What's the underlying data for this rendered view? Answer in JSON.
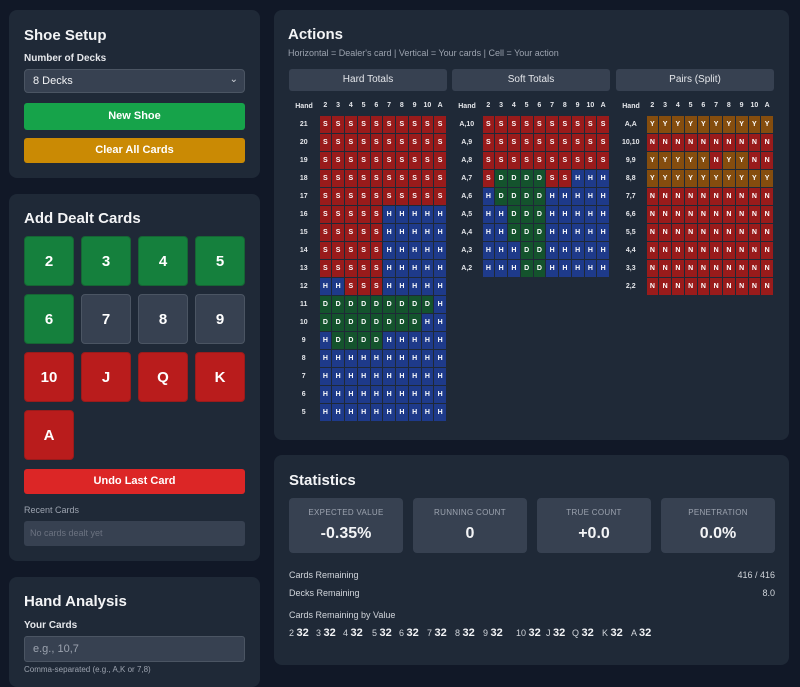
{
  "shoe": {
    "title": "Shoe Setup",
    "decks_label": "Number of Decks",
    "decks_value": "8 Decks",
    "new_shoe": "New Shoe",
    "clear": "Clear All Cards"
  },
  "add": {
    "title": "Add Dealt Cards",
    "cards": [
      "2",
      "3",
      "4",
      "5",
      "6",
      "7",
      "8",
      "9",
      "10",
      "J",
      "Q",
      "K",
      "A"
    ],
    "undo": "Undo Last Card",
    "recent_label": "Recent Cards",
    "recent_placeholder": "No cards dealt yet"
  },
  "hand": {
    "title": "Hand Analysis",
    "cards_label": "Your Cards",
    "cards_placeholder": "e.g., 10,7",
    "hint": "Comma-separated (e.g., A,K or 7,8)"
  },
  "actions": {
    "title": "Actions",
    "subtitle": "Horizontal = Dealer's card | Vertical = Your cards | Cell = Your action",
    "dealer": [
      "2",
      "3",
      "4",
      "5",
      "6",
      "7",
      "8",
      "9",
      "10",
      "A"
    ],
    "hard": {
      "title": "Hard Totals",
      "header": "Hand",
      "rows": [
        [
          "21",
          "SSSSSSSSSS"
        ],
        [
          "20",
          "SSSSSSSSSS"
        ],
        [
          "19",
          "SSSSSSSSSS"
        ],
        [
          "18",
          "SSSSSSSSSS"
        ],
        [
          "17",
          "SSSSSSSSSS"
        ],
        [
          "16",
          "SSSSSHHHHH"
        ],
        [
          "15",
          "SSSSSHHHHH"
        ],
        [
          "14",
          "SSSSSHHHHH"
        ],
        [
          "13",
          "SSSSSHHHHH"
        ],
        [
          "12",
          "HHSSSHHHHH"
        ],
        [
          "11",
          "DDDDDDDDDH"
        ],
        [
          "10",
          "DDDDDDDDHH"
        ],
        [
          "9",
          "HDDDDHHHHH"
        ],
        [
          "8",
          "HHHHHHHHHH"
        ],
        [
          "7",
          "HHHHHHHHHH"
        ],
        [
          "6",
          "HHHHHHHHHH"
        ],
        [
          "5",
          "HHHHHHHHHH"
        ]
      ]
    },
    "soft": {
      "title": "Soft Totals",
      "header": "Hand",
      "rows": [
        [
          "A,10",
          "SSSSSSSSSS"
        ],
        [
          "A,9",
          "SSSSSSSSSS"
        ],
        [
          "A,8",
          "SSSSSSSSSS"
        ],
        [
          "A,7",
          "SDDDDSSHHH"
        ],
        [
          "A,6",
          "HDDDDHHHHH"
        ],
        [
          "A,5",
          "HHDDDHHHHH"
        ],
        [
          "A,4",
          "HHDDDHHHHH"
        ],
        [
          "A,3",
          "HHHDDHHHHH"
        ],
        [
          "A,2",
          "HHHDDHHHHH"
        ]
      ]
    },
    "pairs": {
      "title": "Pairs (Split)",
      "header": "Hand",
      "rows": [
        [
          "A,A",
          "YYYYYYYYYY"
        ],
        [
          "10,10",
          "NNNNNNNNNN"
        ],
        [
          "9,9",
          "YYYYYNYYNN"
        ],
        [
          "8,8",
          "YYYYYYYYYY"
        ],
        [
          "7,7",
          "NNNNNNNNNN"
        ],
        [
          "6,6",
          "NNNNNNNNNN"
        ],
        [
          "5,5",
          "NNNNNNNNNN"
        ],
        [
          "4,4",
          "NNNNNNNNNN"
        ],
        [
          "3,3",
          "NNNNNNNNNN"
        ],
        [
          "2,2",
          "NNNNNNNNNN"
        ]
      ]
    }
  },
  "stats": {
    "title": "Statistics",
    "tiles": [
      {
        "label": "EXPECTED VALUE",
        "value": "-0.35%"
      },
      {
        "label": "RUNNING COUNT",
        "value": "0"
      },
      {
        "label": "TRUE COUNT",
        "value": "+0.0"
      },
      {
        "label": "PENETRATION",
        "value": "0.0%"
      }
    ],
    "cards_remaining_label": "Cards Remaining",
    "cards_remaining_value": "416 / 416",
    "decks_remaining_label": "Decks Remaining",
    "decks_remaining_value": "8.0",
    "by_value_label": "Cards Remaining by Value",
    "by_value": [
      [
        "2",
        "32"
      ],
      [
        "3",
        "32"
      ],
      [
        "4",
        "32"
      ],
      [
        "5",
        "32"
      ],
      [
        "6",
        "32"
      ],
      [
        "7",
        "32"
      ],
      [
        "8",
        "32"
      ],
      [
        "9",
        "32"
      ],
      [
        "10",
        "32"
      ],
      [
        "J",
        "32"
      ],
      [
        "Q",
        "32"
      ],
      [
        "K",
        "32"
      ],
      [
        "A",
        "32"
      ]
    ]
  }
}
